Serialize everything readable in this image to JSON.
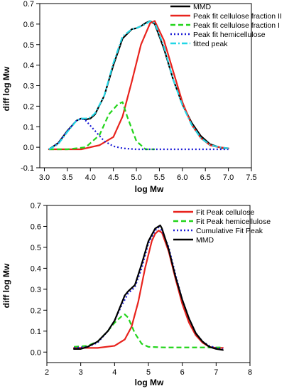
{
  "chart_data": [
    {
      "type": "line",
      "title": "",
      "xlabel": "log Mw",
      "ylabel": "diff log Mw",
      "xlim": [
        2.9,
        7.5
      ],
      "ylim": [
        -0.1,
        0.7
      ],
      "xticks": [
        3.0,
        3.5,
        4.0,
        4.5,
        5.0,
        5.5,
        6.0,
        6.5,
        7.0,
        7.5
      ],
      "xtick_labels": [
        "3.0",
        "3.5",
        "4.0",
        "4.5",
        "5.0",
        "5.5",
        "6.0",
        "6.5",
        "7.0",
        "7.5"
      ],
      "yticks": [
        -0.1,
        0.0,
        0.1,
        0.2,
        0.3,
        0.4,
        0.5,
        0.6,
        0.7
      ],
      "ytick_labels": [
        "-0.1",
        "0.0",
        "0.1",
        "0.2",
        "0.3",
        "0.4",
        "0.5",
        "0.6",
        "0.7"
      ],
      "grid": false,
      "legend_position": "top-right",
      "series": [
        {
          "name": "MMD",
          "color": "#000000",
          "style": "solid",
          "x": [
            3.1,
            3.3,
            3.5,
            3.7,
            3.8,
            3.9,
            4.0,
            4.1,
            4.3,
            4.5,
            4.7,
            4.9,
            5.0,
            5.1,
            5.2,
            5.3,
            5.4,
            5.6,
            5.8,
            6.0,
            6.2,
            6.4,
            6.6,
            6.8,
            6.9,
            7.0
          ],
          "y": [
            -0.01,
            0.02,
            0.08,
            0.13,
            0.14,
            0.135,
            0.14,
            0.16,
            0.25,
            0.4,
            0.53,
            0.575,
            0.58,
            0.59,
            0.605,
            0.615,
            0.6,
            0.48,
            0.33,
            0.21,
            0.12,
            0.055,
            0.015,
            0.0,
            -0.005,
            -0.005
          ]
        },
        {
          "name": "Peak fit cellulose fraction II",
          "color": "#e8231d",
          "style": "solid",
          "x": [
            3.1,
            3.8,
            4.2,
            4.5,
            4.7,
            4.9,
            5.1,
            5.3,
            5.4,
            5.6,
            5.8,
            6.0,
            6.2,
            6.4,
            6.6,
            6.8,
            7.0
          ],
          "y": [
            -0.01,
            -0.01,
            0.01,
            0.05,
            0.15,
            0.32,
            0.5,
            0.605,
            0.615,
            0.52,
            0.37,
            0.22,
            0.11,
            0.045,
            0.01,
            0.0,
            -0.005
          ]
        },
        {
          "name": "Peak fit cellulose fraction I",
          "color": "#22d41a",
          "style": "dashed",
          "x": [
            3.1,
            3.5,
            3.9,
            4.2,
            4.4,
            4.6,
            4.7,
            4.8,
            5.0,
            5.2,
            5.4
          ],
          "y": [
            -0.01,
            -0.01,
            0.0,
            0.06,
            0.16,
            0.21,
            0.22,
            0.15,
            0.03,
            -0.01,
            -0.01
          ]
        },
        {
          "name": "Peak fit hemicellulose",
          "color": "#1b1bd6",
          "style": "dotted",
          "x": [
            3.1,
            3.3,
            3.5,
            3.7,
            3.8,
            3.9,
            4.1,
            4.3,
            4.5,
            4.7,
            5.0,
            5.5,
            6.0,
            6.5,
            7.0
          ],
          "y": [
            -0.01,
            0.02,
            0.08,
            0.13,
            0.14,
            0.13,
            0.08,
            0.03,
            0.005,
            -0.005,
            -0.01,
            -0.01,
            -0.01,
            -0.01,
            -0.01
          ]
        },
        {
          "name": "fitted peak",
          "color": "#22d6e6",
          "style": "dashdot",
          "x": [
            3.1,
            3.3,
            3.5,
            3.7,
            3.8,
            3.9,
            4.0,
            4.1,
            4.3,
            4.5,
            4.7,
            4.9,
            5.0,
            5.1,
            5.2,
            5.3,
            5.4,
            5.6,
            5.8,
            6.0,
            6.2,
            6.4,
            6.6,
            6.8,
            7.0
          ],
          "y": [
            -0.01,
            0.015,
            0.075,
            0.13,
            0.14,
            0.14,
            0.145,
            0.165,
            0.25,
            0.41,
            0.54,
            0.575,
            0.58,
            0.59,
            0.6,
            0.615,
            0.605,
            0.49,
            0.33,
            0.205,
            0.11,
            0.045,
            0.012,
            0.0,
            -0.005
          ]
        }
      ]
    },
    {
      "type": "line",
      "title": "",
      "xlabel": "log Mw",
      "ylabel": "diff log Mw",
      "xlim": [
        2,
        8
      ],
      "ylim": [
        -0.05,
        0.7
      ],
      "xticks": [
        2,
        3,
        4,
        5,
        6,
        7,
        8
      ],
      "xtick_labels": [
        "2",
        "3",
        "4",
        "5",
        "6",
        "7",
        "8"
      ],
      "yticks": [
        0.0,
        0.1,
        0.2,
        0.3,
        0.4,
        0.5,
        0.6,
        0.7
      ],
      "ytick_labels": [
        "0.0",
        "0.1",
        "0.2",
        "0.3",
        "0.4",
        "0.5",
        "0.6",
        "0.7"
      ],
      "grid": false,
      "legend_position": "top-right",
      "series": [
        {
          "name": "Fit Peak cellulose",
          "color": "#e8231d",
          "style": "solid",
          "x": [
            2.8,
            3.5,
            4.0,
            4.3,
            4.5,
            4.7,
            4.9,
            5.1,
            5.2,
            5.3,
            5.4,
            5.6,
            5.8,
            6.0,
            6.2,
            6.4,
            6.6,
            6.8,
            7.0,
            7.2
          ],
          "y": [
            0.02,
            0.02,
            0.03,
            0.06,
            0.12,
            0.24,
            0.4,
            0.53,
            0.565,
            0.58,
            0.57,
            0.48,
            0.35,
            0.23,
            0.14,
            0.08,
            0.045,
            0.025,
            0.02,
            0.02
          ]
        },
        {
          "name": "Fit Peak hemicellulose",
          "color": "#22d41a",
          "style": "dashed",
          "x": [
            2.8,
            3.2,
            3.5,
            3.8,
            4.0,
            4.2,
            4.3,
            4.4,
            4.6,
            4.8,
            5.0,
            5.5,
            6.0,
            6.5,
            7.0,
            7.2
          ],
          "y": [
            0.025,
            0.03,
            0.05,
            0.1,
            0.14,
            0.17,
            0.18,
            0.165,
            0.09,
            0.04,
            0.025,
            0.022,
            0.022,
            0.022,
            0.022,
            0.022
          ]
        },
        {
          "name": "Cumulative Fit Peak",
          "color": "#1b1bd6",
          "style": "dotted",
          "x": [
            2.8,
            3.2,
            3.5,
            3.8,
            4.0,
            4.2,
            4.4,
            4.6,
            4.8,
            5.0,
            5.2,
            5.3,
            5.4,
            5.6,
            5.8,
            6.0,
            6.2,
            6.4,
            6.6,
            6.8,
            7.0,
            7.2
          ],
          "y": [
            0.02,
            0.025,
            0.045,
            0.1,
            0.15,
            0.22,
            0.28,
            0.31,
            0.4,
            0.52,
            0.58,
            0.595,
            0.58,
            0.5,
            0.37,
            0.25,
            0.16,
            0.09,
            0.05,
            0.03,
            0.02,
            0.015
          ]
        },
        {
          "name": "MMD",
          "color": "#000000",
          "style": "solid",
          "x": [
            2.8,
            3.0,
            3.2,
            3.5,
            3.8,
            4.0,
            4.2,
            4.3,
            4.4,
            4.6,
            4.8,
            5.0,
            5.2,
            5.3,
            5.35,
            5.4,
            5.6,
            5.8,
            6.0,
            6.2,
            6.4,
            6.6,
            6.8,
            7.0,
            7.2
          ],
          "y": [
            0.015,
            0.015,
            0.025,
            0.05,
            0.1,
            0.15,
            0.23,
            0.27,
            0.29,
            0.32,
            0.42,
            0.53,
            0.59,
            0.6,
            0.605,
            0.59,
            0.49,
            0.36,
            0.25,
            0.16,
            0.09,
            0.05,
            0.025,
            0.015,
            0.01
          ]
        }
      ]
    }
  ]
}
